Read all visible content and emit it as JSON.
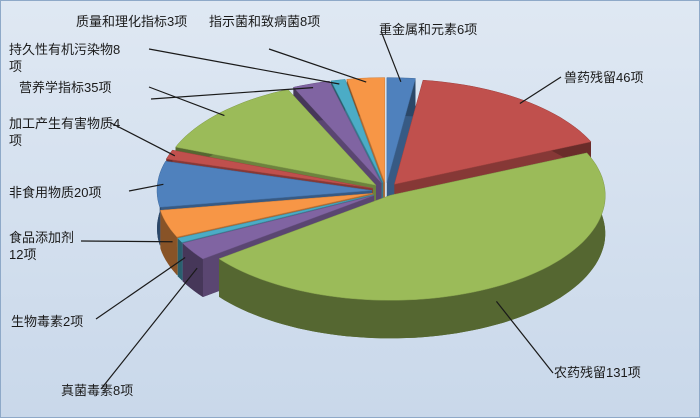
{
  "chart_data": {
    "type": "pie3d",
    "categories": [
      "重金属和元素6项",
      "兽药残留46项",
      "农药残留131项",
      "真菌毒素8项",
      "生物毒素2项",
      "食品添加剂12项",
      "非食用物质20项",
      "加工产生有害物质4项",
      "营养学指标35项",
      "持久性有机污染物8项",
      "质量和理化指标3项",
      "指示菌和致病菌8项"
    ],
    "values": [
      6,
      46,
      131,
      8,
      2,
      12,
      20,
      4,
      35,
      8,
      3,
      8
    ],
    "colors": [
      "#4f81bd",
      "#c0504d",
      "#9bbb59",
      "#8064a2",
      "#4bacc6",
      "#f79646",
      "#4f81bd",
      "#c0504d",
      "#9bbb59",
      "#8064a2",
      "#4bacc6",
      "#f79646"
    ]
  }
}
